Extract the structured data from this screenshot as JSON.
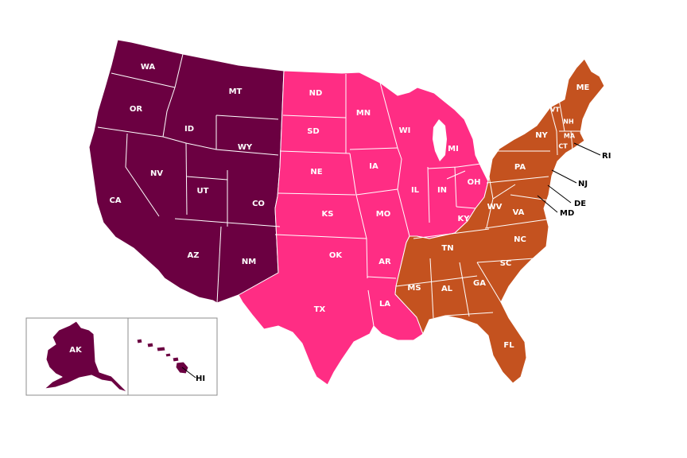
{
  "colors": {
    "west": "#6b0041",
    "central": "#ff2d84",
    "east": "#c4521f",
    "callout_text": "#000000",
    "inset_border": "#8c8c8c"
  },
  "regions": {
    "west": {
      "color_key": "west",
      "states": [
        "WA",
        "OR",
        "CA",
        "ID",
        "NV",
        "MT",
        "WY",
        "UT",
        "CO",
        "AZ",
        "NM",
        "AK",
        "HI"
      ]
    },
    "central": {
      "color_key": "central",
      "states": [
        "ND",
        "SD",
        "NE",
        "KS",
        "OK",
        "TX",
        "MN",
        "IA",
        "MO",
        "AR",
        "LA",
        "WI",
        "IL",
        "MI",
        "IN",
        "OH",
        "KY"
      ]
    },
    "east": {
      "color_key": "east",
      "states": [
        "ME",
        "VT",
        "NH",
        "MA",
        "CT",
        "RI",
        "NY",
        "PA",
        "NJ",
        "DE",
        "MD",
        "WV",
        "VA",
        "NC",
        "SC",
        "TN",
        "GA",
        "AL",
        "MS",
        "FL"
      ]
    }
  },
  "labels": {
    "WA": "WA",
    "OR": "OR",
    "CA": "CA",
    "ID": "ID",
    "NV": "NV",
    "MT": "MT",
    "WY": "WY",
    "UT": "UT",
    "CO": "CO",
    "AZ": "AZ",
    "NM": "NM",
    "ND": "ND",
    "SD": "SD",
    "NE": "NE",
    "KS": "KS",
    "OK": "OK",
    "TX": "TX",
    "MN": "MN",
    "IA": "IA",
    "MO": "MO",
    "AR": "AR",
    "LA": "LA",
    "WI": "WI",
    "IL": "IL",
    "MI": "MI",
    "IN": "IN",
    "OH": "OH",
    "KY": "KY",
    "ME": "ME",
    "VT": "VT",
    "NH": "NH",
    "MA": "MA",
    "CT": "CT",
    "RI": "RI",
    "NY": "NY",
    "PA": "PA",
    "NJ": "NJ",
    "DE": "DE",
    "MD": "MD",
    "WV": "WV",
    "VA": "VA",
    "NC": "NC",
    "SC": "SC",
    "TN": "TN",
    "GA": "GA",
    "AL": "AL",
    "MS": "MS",
    "FL": "FL",
    "AK": "AK",
    "HI": "HI"
  }
}
